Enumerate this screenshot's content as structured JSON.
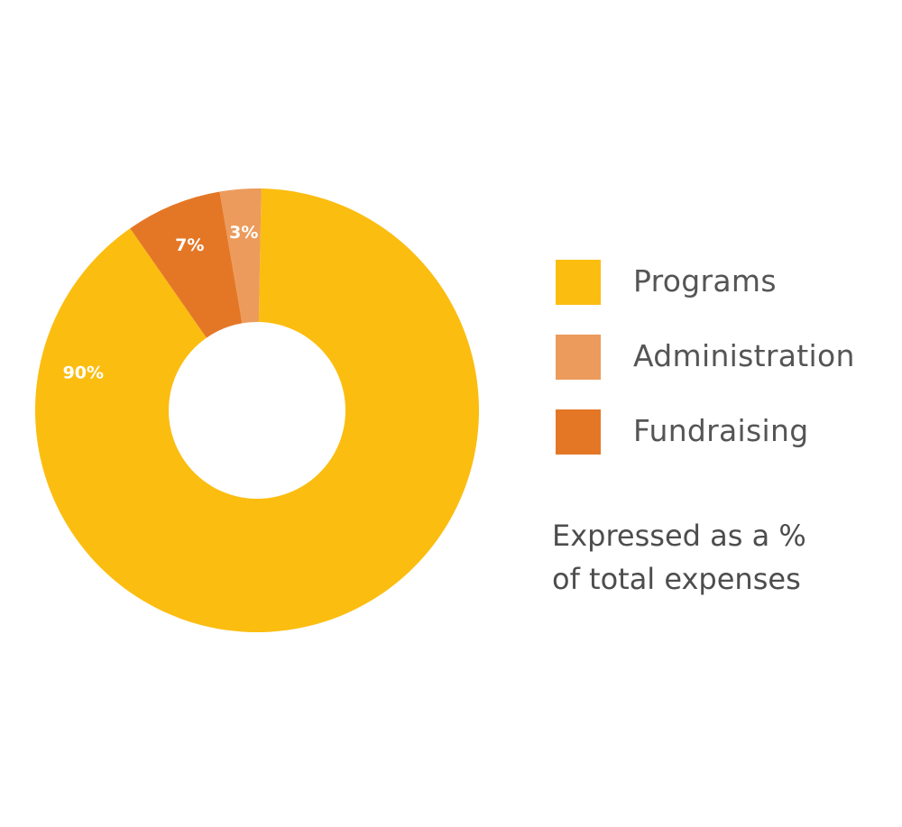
{
  "chart_data": {
    "type": "pie",
    "donut": true,
    "title": "",
    "categories": [
      "Programs",
      "Administration",
      "Fundraising"
    ],
    "values": [
      90,
      3,
      7
    ],
    "labels": [
      "90%",
      "3%",
      "7%"
    ],
    "colors": [
      "#FBBD10",
      "#EC9B5C",
      "#E47726"
    ],
    "legend_position": "right"
  },
  "note": {
    "line1": "Expressed as a %",
    "line2": "of total expenses"
  }
}
